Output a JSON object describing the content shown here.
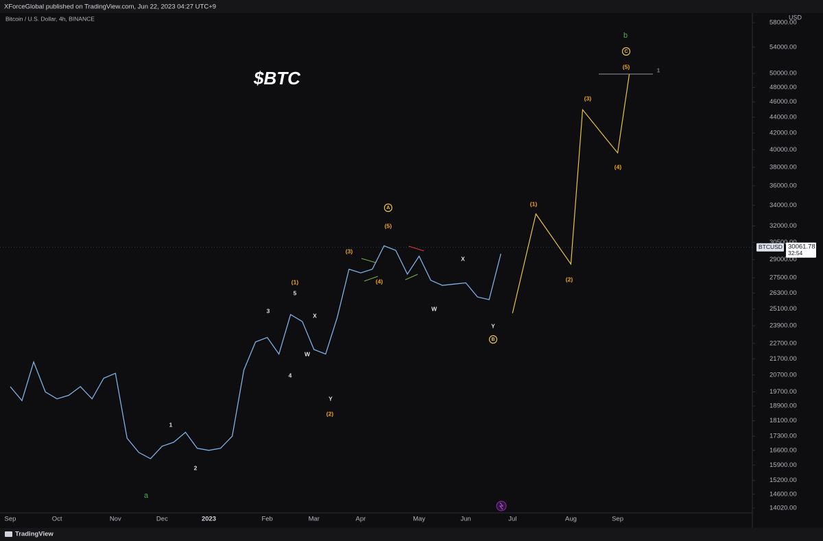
{
  "chart_data": {
    "type": "line",
    "header": "XForceGlobal published on TradingView.com, Jun 22, 2023 04:27 UTC+9",
    "title": "$BTC",
    "currency": "USD",
    "brand": "TradingView",
    "symbol": "BTCUSD",
    "last_price": 30061.78,
    "countdown": "32:54",
    "log_scale": true,
    "categories": [
      "Sep",
      null,
      null,
      null,
      "Oct",
      null,
      null,
      null,
      null,
      "Nov",
      null,
      null,
      null,
      "Dec",
      null,
      null,
      null,
      "2023",
      null,
      null,
      null,
      null,
      "Feb",
      null,
      null,
      null,
      "Mar",
      null,
      null,
      null,
      "Apr",
      null,
      null,
      null,
      null,
      "May",
      null,
      null,
      null,
      "Jun",
      null,
      null,
      null,
      "Jul",
      null,
      null,
      null,
      null,
      "Aug",
      null,
      null,
      null,
      "Sep",
      null
    ],
    "series": [
      {
        "name": "Bitcoin / U.S. Dollar, 4h, BINANCE",
        "color": "#7fb0e6",
        "values": [
          20000,
          19200,
          21500,
          19700,
          19300,
          19500,
          20000,
          19300,
          20500,
          20800,
          17200,
          16500,
          16200,
          16800,
          17000,
          17500,
          16700,
          16600,
          16700,
          17300,
          21000,
          22800,
          23100,
          22000,
          24700,
          24200,
          22300,
          22000,
          24500,
          28200,
          27900,
          28200,
          30200,
          29800,
          27800,
          29300,
          27300,
          26900,
          27000,
          27100,
          26000,
          25800,
          29500,
          null,
          null,
          null,
          null,
          null,
          null,
          null,
          null,
          null,
          null,
          null
        ]
      },
      {
        "color": "#e8c547",
        "values": [
          null,
          null,
          null,
          null,
          null,
          null,
          null,
          null,
          null,
          null,
          null,
          null,
          null,
          null,
          null,
          null,
          null,
          null,
          null,
          null,
          null,
          null,
          null,
          null,
          null,
          null,
          null,
          null,
          null,
          null,
          null,
          null,
          null,
          null,
          null,
          null,
          null,
          null,
          null,
          null,
          null,
          null,
          null,
          24800,
          28670,
          33150,
          31570,
          30060,
          28630,
          44970,
          43110,
          41330,
          39630,
          49910
        ]
      }
    ],
    "ylim": [
      13825,
      58600
    ],
    "yticks": [
      {
        "value": 58000,
        "label": "58000.00"
      },
      {
        "value": 54000,
        "label": "54000.00"
      },
      {
        "value": 50000,
        "label": "50000.00"
      },
      {
        "value": 48000,
        "label": "48000.00"
      },
      {
        "value": 46000,
        "label": "46000.00"
      },
      {
        "value": 44000,
        "label": "44000.00"
      },
      {
        "value": 42000,
        "label": "42000.00"
      },
      {
        "value": 40000,
        "label": "40000.00"
      },
      {
        "value": 38000,
        "label": "38000.00"
      },
      {
        "value": 36000,
        "label": "36000.00"
      },
      {
        "value": 34000,
        "label": "34000.00"
      },
      {
        "value": 32000,
        "label": "32000.00"
      },
      {
        "value": 30500,
        "label": "30500.00"
      },
      {
        "value": 29000,
        "label": "29000.00"
      },
      {
        "value": 27500,
        "label": "27500.00"
      },
      {
        "value": 26300,
        "label": "26300.00"
      },
      {
        "value": 25100,
        "label": "25100.00"
      },
      {
        "value": 23900,
        "label": "23900.00"
      },
      {
        "value": 22700,
        "label": "22700.00"
      },
      {
        "value": 21700,
        "label": "21700.00"
      },
      {
        "value": 20700,
        "label": "20700.00"
      },
      {
        "value": 19700,
        "label": "19700.00"
      },
      {
        "value": 18900,
        "label": "18900.00"
      },
      {
        "value": 18100,
        "label": "18100.00"
      },
      {
        "value": 17300,
        "label": "17300.00"
      },
      {
        "value": 16600,
        "label": "16600.00"
      },
      {
        "value": 15900,
        "label": "15900.00"
      },
      {
        "value": 15200,
        "label": "15200.00"
      },
      {
        "value": 14600,
        "label": "14600.00"
      },
      {
        "value": 14020,
        "label": "14020.00"
      }
    ],
    "annotations": [
      {
        "text": "b",
        "color": "#4caf50"
      },
      {
        "text": "C",
        "color": "#e8c547",
        "circled": true
      },
      {
        "text": "(5)",
        "color": "#f5a623"
      },
      {
        "text": "1",
        "color": "#787b86"
      },
      {
        "text": "(3)",
        "color": "#f5a623"
      },
      {
        "text": "(4)",
        "color": "#f5a623"
      },
      {
        "text": "(1)",
        "color": "#f5a623"
      },
      {
        "text": "(2)",
        "color": "#f5a623"
      },
      {
        "text": "A",
        "color": "#e8c547",
        "circled": true
      },
      {
        "text": "(5)",
        "color": "#f5a623"
      },
      {
        "text": "(3)",
        "color": "#f5a623"
      },
      {
        "text": "(4)",
        "color": "#f5a623"
      },
      {
        "text": "X",
        "color": "#e0e0e0"
      },
      {
        "text": "W",
        "color": "#e0e0e0"
      },
      {
        "text": "Y",
        "color": "#e0e0e0"
      },
      {
        "text": "B",
        "color": "#e8c547",
        "circled": true
      },
      {
        "text": "(1)",
        "color": "#f5a623"
      },
      {
        "text": "5",
        "color": "#e0e0e0"
      },
      {
        "text": "3",
        "color": "#e0e0e0"
      },
      {
        "text": "X",
        "color": "#e0e0e0"
      },
      {
        "text": "W",
        "color": "#e0e0e0"
      },
      {
        "text": "4",
        "color": "#e0e0e0"
      },
      {
        "text": "Y",
        "color": "#e0e0e0"
      },
      {
        "text": "(2)",
        "color": "#f5a623"
      },
      {
        "text": "1",
        "color": "#e0e0e0"
      },
      {
        "text": "2",
        "color": "#e0e0e0"
      },
      {
        "text": "a",
        "color": "#4caf50"
      }
    ]
  }
}
